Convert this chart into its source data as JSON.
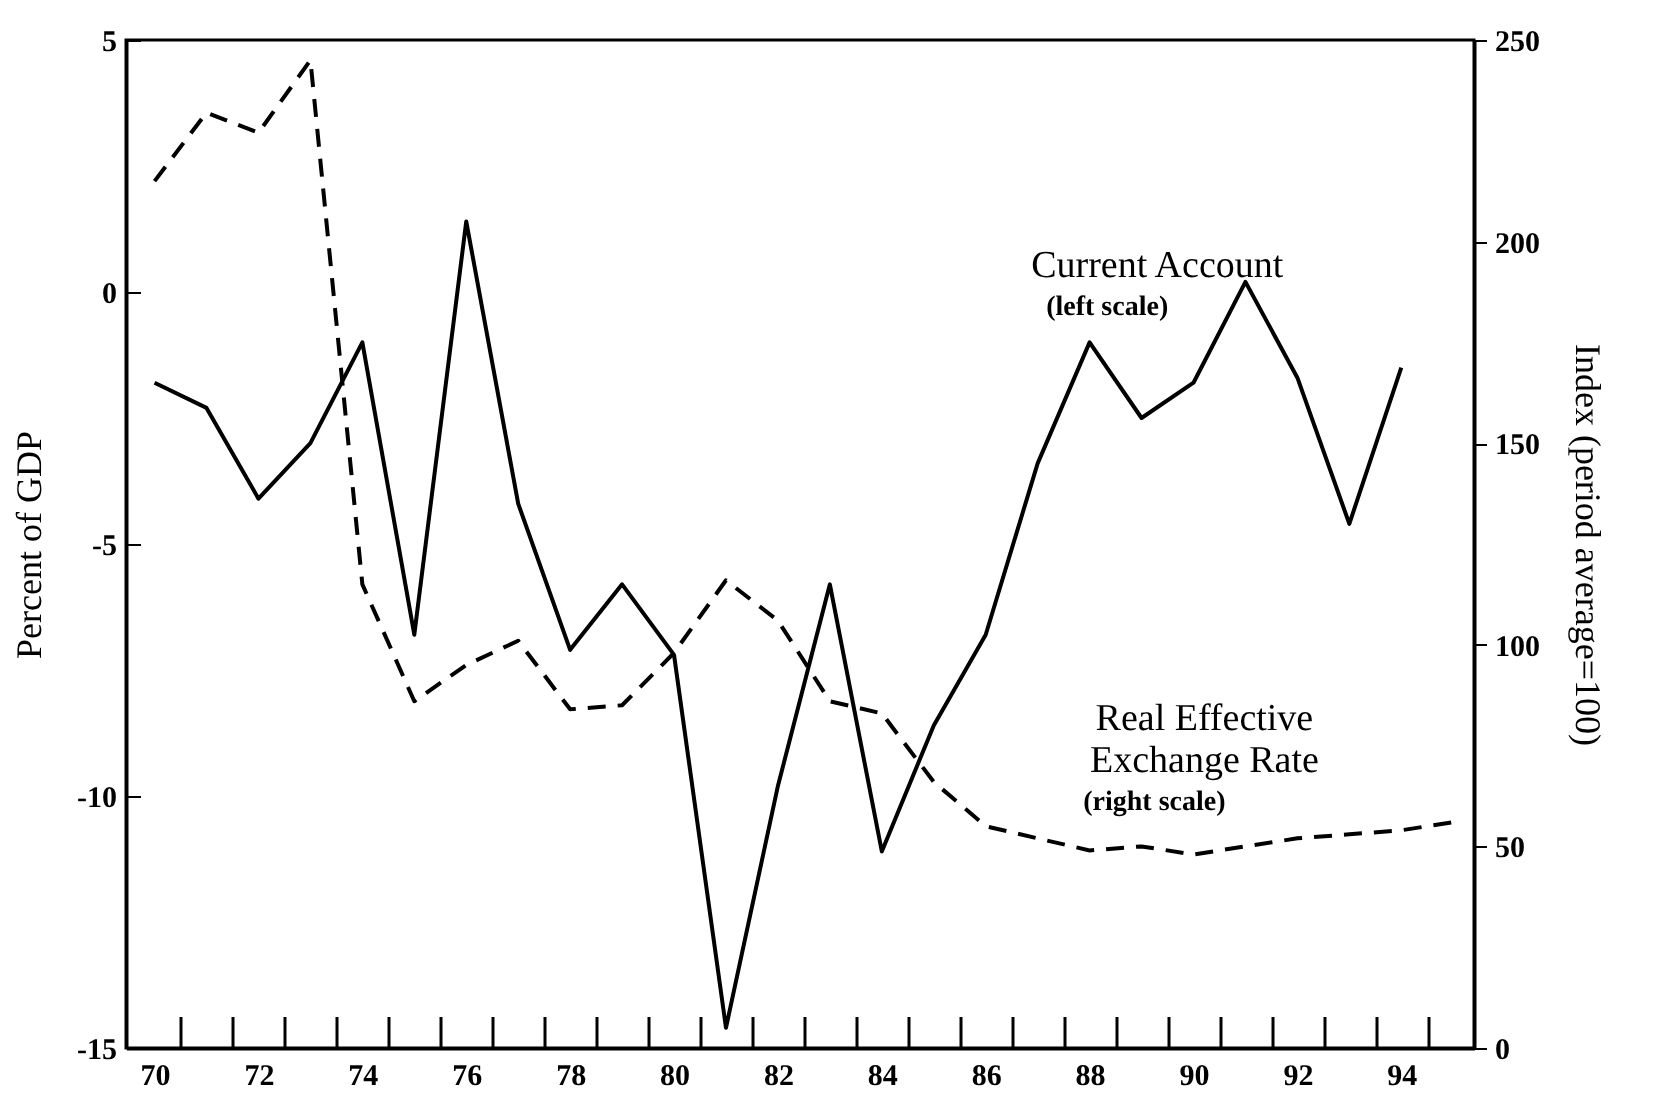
{
  "chart_data": {
    "type": "line",
    "ylabel": "Percent of GDP",
    "y2label": "Index (period average=100)",
    "x": [
      70,
      71,
      72,
      73,
      74,
      75,
      76,
      77,
      78,
      79,
      80,
      81,
      82,
      83,
      84,
      85,
      86,
      87,
      88,
      89,
      90,
      91,
      92,
      93,
      94
    ],
    "series": [
      {
        "name": "Current Account",
        "color": "#000000",
        "line_style": "solid",
        "axis": "y",
        "values": [
          -1.8,
          -2.3,
          -4.1,
          -3.0,
          -1.0,
          -6.8,
          1.4,
          -4.2,
          -7.1,
          -5.8,
          -7.2,
          -14.6,
          -9.8,
          -5.8,
          -11.1,
          -8.6,
          -6.8,
          -3.4,
          -1.0,
          -2.5,
          -1.8,
          0.2,
          -1.7,
          -4.6,
          -1.5
        ]
      },
      {
        "name": "Real Effective\nExchange Rate",
        "color": "#000000",
        "line_style": "dashed",
        "axis": "y2",
        "x": [
          70,
          71,
          72,
          73,
          74,
          75,
          76,
          77,
          78,
          79,
          80,
          81,
          82,
          83,
          84,
          85,
          86,
          87,
          88,
          89,
          90,
          91,
          92,
          93,
          94,
          95
        ],
        "values": [
          215,
          232,
          227,
          245,
          115,
          86,
          95,
          101,
          84,
          85,
          98,
          116,
          106,
          86,
          83,
          66,
          55,
          52,
          49,
          50,
          48,
          50,
          52,
          53,
          54,
          56
        ]
      }
    ],
    "xlim": [
      69.45,
      95.4
    ],
    "xticks": [
      70,
      {
        "value": 70.5,
        "label": null
      },
      {
        "value": 71.5,
        "label": null
      },
      72,
      {
        "value": 72.5,
        "label": null
      },
      {
        "value": 73.5,
        "label": null
      },
      74,
      {
        "value": 74.5,
        "label": null
      },
      {
        "value": 75.5,
        "label": null
      },
      76,
      {
        "value": 76.5,
        "label": null
      },
      {
        "value": 77.5,
        "label": null
      },
      78,
      {
        "value": 78.5,
        "label": null
      },
      {
        "value": 79.5,
        "label": null
      },
      80,
      {
        "value": 80.5,
        "label": null
      },
      {
        "value": 81.5,
        "label": null
      },
      82,
      {
        "value": 82.5,
        "label": null
      },
      {
        "value": 83.5,
        "label": null
      },
      84,
      {
        "value": 84.5,
        "label": null
      },
      {
        "value": 85.5,
        "label": null
      },
      86,
      {
        "value": 86.5,
        "label": null
      },
      {
        "value": 87.5,
        "label": null
      },
      88,
      {
        "value": 88.5,
        "label": null
      },
      {
        "value": 89.5,
        "label": null
      },
      90,
      {
        "value": 90.5,
        "label": null
      },
      {
        "value": 91.5,
        "label": null
      },
      92,
      {
        "value": 92.5,
        "label": null
      },
      {
        "value": 93.5,
        "label": null
      },
      94,
      {
        "value": 94.5,
        "label": null
      }
    ],
    "ylim": [
      -15,
      5
    ],
    "yticks": [
      -15,
      -10,
      -5,
      0,
      5
    ],
    "y2lim": [
      0,
      250
    ],
    "y2ticks": [
      0,
      50,
      100,
      150,
      200,
      250
    ],
    "annotations": [
      "(left scale)",
      "(right scale)"
    ],
    "grid": false
  }
}
